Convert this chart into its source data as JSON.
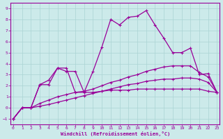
{
  "background_color": "#cceaea",
  "grid_color": "#aad4d4",
  "line_color": "#990099",
  "xlim": [
    -0.3,
    23.3
  ],
  "ylim": [
    -1.5,
    9.5
  ],
  "xticks": [
    0,
    1,
    2,
    3,
    4,
    5,
    6,
    7,
    8,
    9,
    10,
    11,
    12,
    13,
    14,
    15,
    16,
    17,
    18,
    19,
    20,
    21,
    22,
    23
  ],
  "yticks": [
    -1,
    0,
    1,
    2,
    3,
    4,
    5,
    6,
    7,
    8,
    9
  ],
  "xlabel": "Windchill (Refroidissement éolien,°C)",
  "x": [
    0,
    1,
    2,
    3,
    4,
    5,
    6,
    7,
    8,
    9,
    10,
    11,
    12,
    13,
    14,
    15,
    16,
    17,
    18,
    19,
    20,
    21,
    22,
    23
  ],
  "line1_y": [
    -1,
    0,
    0,
    2.1,
    2.1,
    3.6,
    3.6,
    1.4,
    1.4,
    3.3,
    5.5,
    8.0,
    7.5,
    8.2,
    8.3,
    8.8,
    7.5,
    6.3,
    5.0,
    5.0,
    5.4,
    3.0,
    3.1,
    1.4
  ],
  "line2_y": [
    -1,
    0,
    0,
    2.1,
    2.5,
    3.6,
    3.3,
    3.3,
    1.4,
    1.4,
    1.5,
    1.6,
    1.6,
    1.6,
    1.7,
    1.7,
    1.7,
    1.7,
    1.7,
    1.7,
    1.7,
    1.7,
    1.5,
    1.4
  ],
  "line3_y": [
    -1,
    0,
    0,
    0.4,
    0.7,
    1.0,
    1.2,
    1.4,
    1.5,
    1.7,
    2.0,
    2.3,
    2.5,
    2.8,
    3.0,
    3.3,
    3.5,
    3.7,
    3.8,
    3.8,
    3.8,
    3.2,
    2.8,
    1.4
  ],
  "line4_y": [
    -1,
    0,
    0,
    0.15,
    0.3,
    0.5,
    0.7,
    0.9,
    1.1,
    1.3,
    1.5,
    1.7,
    1.9,
    2.1,
    2.2,
    2.4,
    2.5,
    2.6,
    2.6,
    2.7,
    2.7,
    2.6,
    2.3,
    1.4
  ]
}
